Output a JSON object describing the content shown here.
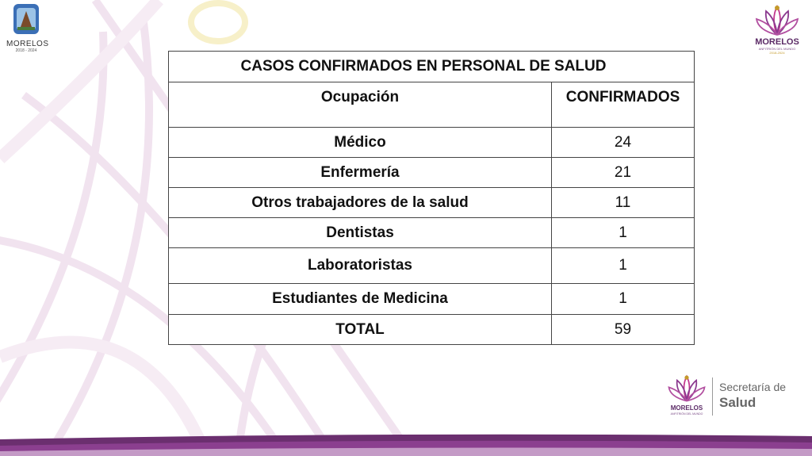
{
  "logos": {
    "left": {
      "name": "MORELOS",
      "years": "2018 - 2024"
    },
    "right": {
      "name": "MORELOS",
      "tag": "ANFITRIÓN DEL MUNDO",
      "years": "2018-2024"
    },
    "bottom": {
      "name": "MORELOS",
      "tag": "ANFITRIÓN DEL MUNDO",
      "secretaria": "Secretaría de",
      "salud": "Salud"
    }
  },
  "table": {
    "title": "CASOS CONFIRMADOS EN PERSONAL DE SALUD",
    "headers": {
      "occupation": "Ocupación",
      "confirmed": "CONFIRMADOS"
    },
    "rows": [
      {
        "occupation": "Médico",
        "confirmed": "24"
      },
      {
        "occupation": "Enfermería",
        "confirmed": "21"
      },
      {
        "occupation": "Otros trabajadores de la salud",
        "confirmed": "11"
      },
      {
        "occupation": "Dentistas",
        "confirmed": "1"
      },
      {
        "occupation": "Laboratoristas",
        "confirmed": "1"
      },
      {
        "occupation": "Estudiantes de Medicina",
        "confirmed": "1"
      }
    ],
    "total": {
      "label": "TOTAL",
      "value": "59"
    }
  },
  "colors": {
    "purple": "#5b2a66",
    "magenta": "#c2378f",
    "gold": "#c49a2a",
    "background_tint": "#f3e6f1"
  }
}
